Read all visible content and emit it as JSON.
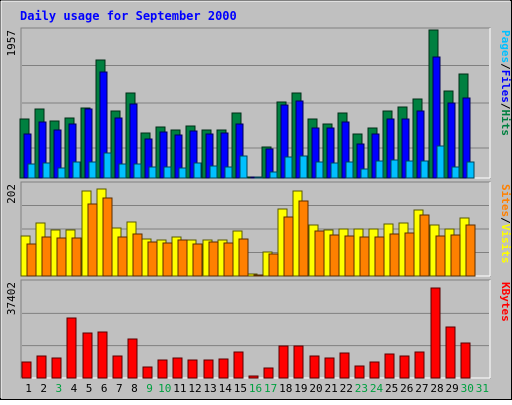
{
  "chart_data": [
    {
      "type": "bar",
      "title": "Daily usage for September 2000",
      "categories": [
        "1",
        "2",
        "3",
        "4",
        "5",
        "6",
        "7",
        "8",
        "9",
        "10",
        "11",
        "12",
        "13",
        "14",
        "15",
        "16",
        "17",
        "18",
        "19",
        "20",
        "21",
        "22",
        "23",
        "24",
        "25",
        "26",
        "27",
        "28",
        "29",
        "30",
        "31"
      ],
      "weekend_days": [
        "3",
        "9",
        "10",
        "16",
        "17",
        "23",
        "24",
        "30",
        "31"
      ],
      "ymax_label": "1957",
      "ylim": [
        0,
        1957
      ],
      "legend": [
        "Pages",
        "/",
        "Files",
        "/",
        "Hits"
      ],
      "series": [
        {
          "name": "Hits",
          "color": "#008040",
          "values": [
            785,
            918,
            751,
            795,
            921,
            1563,
            884,
            1119,
            601,
            672,
            629,
            693,
            632,
            637,
            857,
            12,
            415,
            1003,
            1122,
            779,
            710,
            866,
            576,
            666,
            880,
            935,
            1040,
            1957,
            1154,
            1379,
            0
          ]
        },
        {
          "name": "Files",
          "color": "#0000ff",
          "values": [
            584,
            741,
            629,
            709,
            917,
            1405,
            795,
            973,
            517,
            604,
            568,
            619,
            579,
            594,
            715,
            15,
            390,
            970,
            1020,
            667,
            659,
            737,
            451,
            583,
            774,
            780,
            887,
            1601,
            997,
            1060,
            0
          ]
        },
        {
          "name": "Pages",
          "color": "#00c0ff",
          "values": [
            188,
            201,
            132,
            206,
            211,
            336,
            184,
            183,
            148,
            152,
            137,
            196,
            155,
            151,
            286,
            3,
            85,
            273,
            293,
            205,
            197,
            206,
            116,
            231,
            237,
            224,
            228,
            427,
            149,
            211,
            0
          ]
        }
      ]
    },
    {
      "type": "bar",
      "ymax_label": "202",
      "ylim": [
        0,
        202
      ],
      "legend": [
        "Sites",
        "/",
        "Visits"
      ],
      "series": [
        {
          "name": "Visits",
          "color": "#ffff00",
          "values": [
            88,
            117,
            102,
            101,
            186,
            192,
            106,
            119,
            82,
            80,
            86,
            78,
            78,
            80,
            98,
            4,
            52,
            148,
            186,
            111,
            102,
            104,
            103,
            103,
            114,
            117,
            146,
            113,
            103,
            127,
            0
          ]
        },
        {
          "name": "Sites",
          "color": "#ff8000",
          "values": [
            70,
            85,
            83,
            83,
            159,
            172,
            85,
            93,
            74,
            73,
            79,
            71,
            74,
            72,
            81,
            3,
            49,
            130,
            164,
            98,
            89,
            88,
            86,
            86,
            92,
            94,
            133,
            87,
            89,
            112,
            0
          ]
        }
      ]
    },
    {
      "type": "bar",
      "ymax_label": "37402",
      "ylim": [
        0,
        37402
      ],
      "legend": [
        "KBytes"
      ],
      "series": [
        {
          "name": "KBytes",
          "color": "#ff0000",
          "values": [
            6200,
            8600,
            7700,
            23500,
            17700,
            18000,
            8600,
            15300,
            4400,
            7200,
            7600,
            7000,
            7000,
            7400,
            10000,
            900,
            4000,
            12400,
            12300,
            8700,
            7700,
            9800,
            4600,
            6300,
            9300,
            8700,
            10000,
            35000,
            19700,
            13500,
            0
          ]
        }
      ]
    }
  ]
}
